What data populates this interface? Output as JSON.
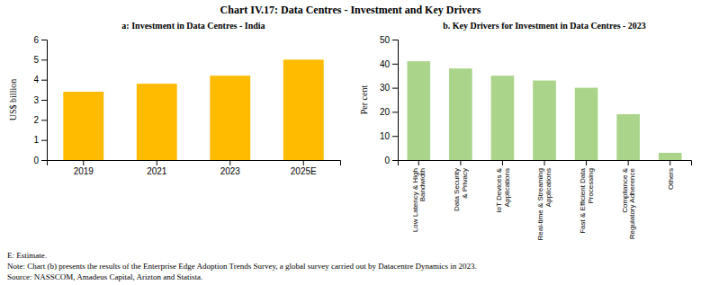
{
  "title": "Chart IV.17: Data Centres - Investment and Key Drivers",
  "annotations": [
    "E: Estimate.",
    "Note: Chart (b) presents the results of the Enterprise Edge Adoption Trends Survey, a global survey carried out by Datacentre Dynamics in 2023.",
    "Source: NASSCOM, Amadeus Capital, Arizton and Statista."
  ],
  "chart_data": [
    {
      "type": "bar",
      "title": "a: Investment in Data Centres - India",
      "categories": [
        "2019",
        "2021",
        "2023",
        "2025E"
      ],
      "values": [
        3.4,
        3.8,
        4.2,
        5.0
      ],
      "ylabel": "US$ billion",
      "ylim": [
        0,
        6
      ],
      "yticks": [
        0,
        1,
        2,
        3,
        4,
        5,
        6
      ],
      "color": "#FFBB00",
      "grid": false
    },
    {
      "type": "bar",
      "title": "b. Key Drivers for Investment in Data Centres - 2023",
      "categories": [
        "Low Latency & High\nBandwidth",
        "Data Security\n& Privacy",
        "IoT Devices &\nApplications",
        "Real-time & Streaming\nApplications",
        "Fast & Efficient Data\nProcessing",
        "Compliance &\nRegulatory Adherence",
        "Others"
      ],
      "values": [
        41,
        38,
        35,
        33,
        30,
        19,
        3
      ],
      "ylabel": "Per cent",
      "ylim": [
        0,
        50
      ],
      "yticks": [
        0,
        10,
        20,
        30,
        40,
        50
      ],
      "color": "#aad48a",
      "grid": false
    }
  ]
}
